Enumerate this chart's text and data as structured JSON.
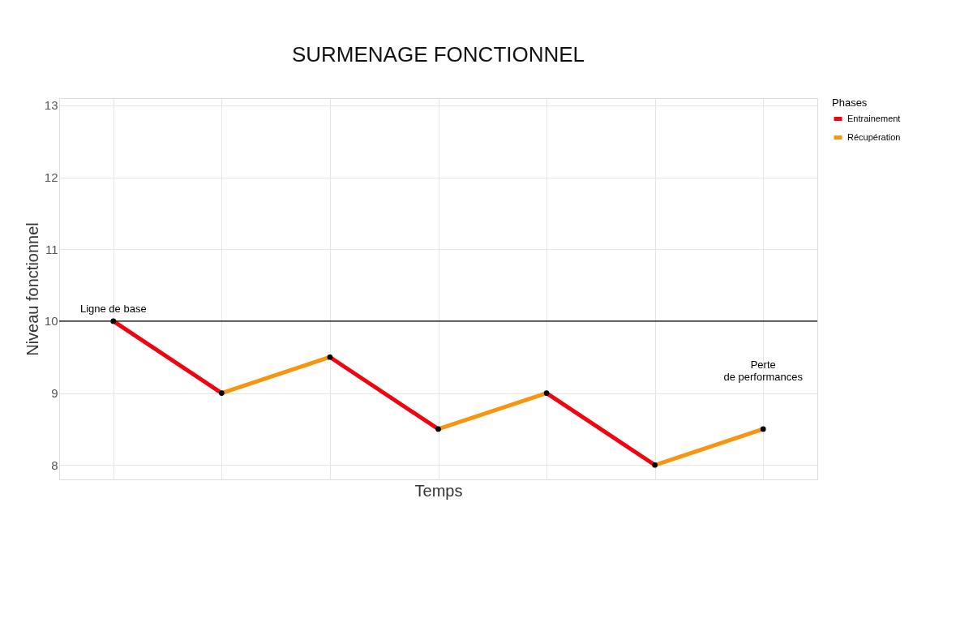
{
  "chart_data": {
    "type": "line",
    "title": "SURMENAGE FONCTIONNEL",
    "xlabel": "Temps",
    "ylabel": "Niveau fonctionnel",
    "legend_title": "Phases",
    "legend": "right",
    "grid": true,
    "categories": [
      null,
      null,
      null,
      null,
      null,
      null,
      null
    ],
    "ylim": [
      7.8,
      13.1
    ],
    "yticks": [
      8,
      9,
      10,
      11,
      12,
      13
    ],
    "series": [
      {
        "name": "Entrainement",
        "color": "#f0040f",
        "values": [
          10,
          9,
          null,
          null,
          null,
          null,
          null
        ]
      },
      {
        "name": "Récupération",
        "color": "#f7960e",
        "values": [
          null,
          9,
          9.5,
          null,
          null,
          null,
          null
        ]
      },
      {
        "color": "#f0040f",
        "values": [
          null,
          null,
          9.5,
          8.5,
          null,
          null,
          null
        ]
      },
      {
        "color": "#f7960e",
        "values": [
          null,
          null,
          null,
          8.5,
          9,
          null,
          null
        ]
      },
      {
        "color": "#f0040f",
        "values": [
          null,
          null,
          null,
          null,
          9,
          8,
          null
        ]
      },
      {
        "color": "#f7960e",
        "values": [
          null,
          null,
          null,
          null,
          null,
          8,
          8.5
        ]
      },
      {
        "type": "scatter",
        "color": "#000000",
        "marker": "circle",
        "values": [
          10,
          9,
          9.5,
          8.5,
          9,
          8,
          8.5
        ]
      }
    ],
    "ref_lines": [
      {
        "axis": "y",
        "value": 10,
        "label": "Ligne de base",
        "color": "#000000"
      }
    ],
    "annotations": [
      "Perte\nde performances"
    ]
  }
}
